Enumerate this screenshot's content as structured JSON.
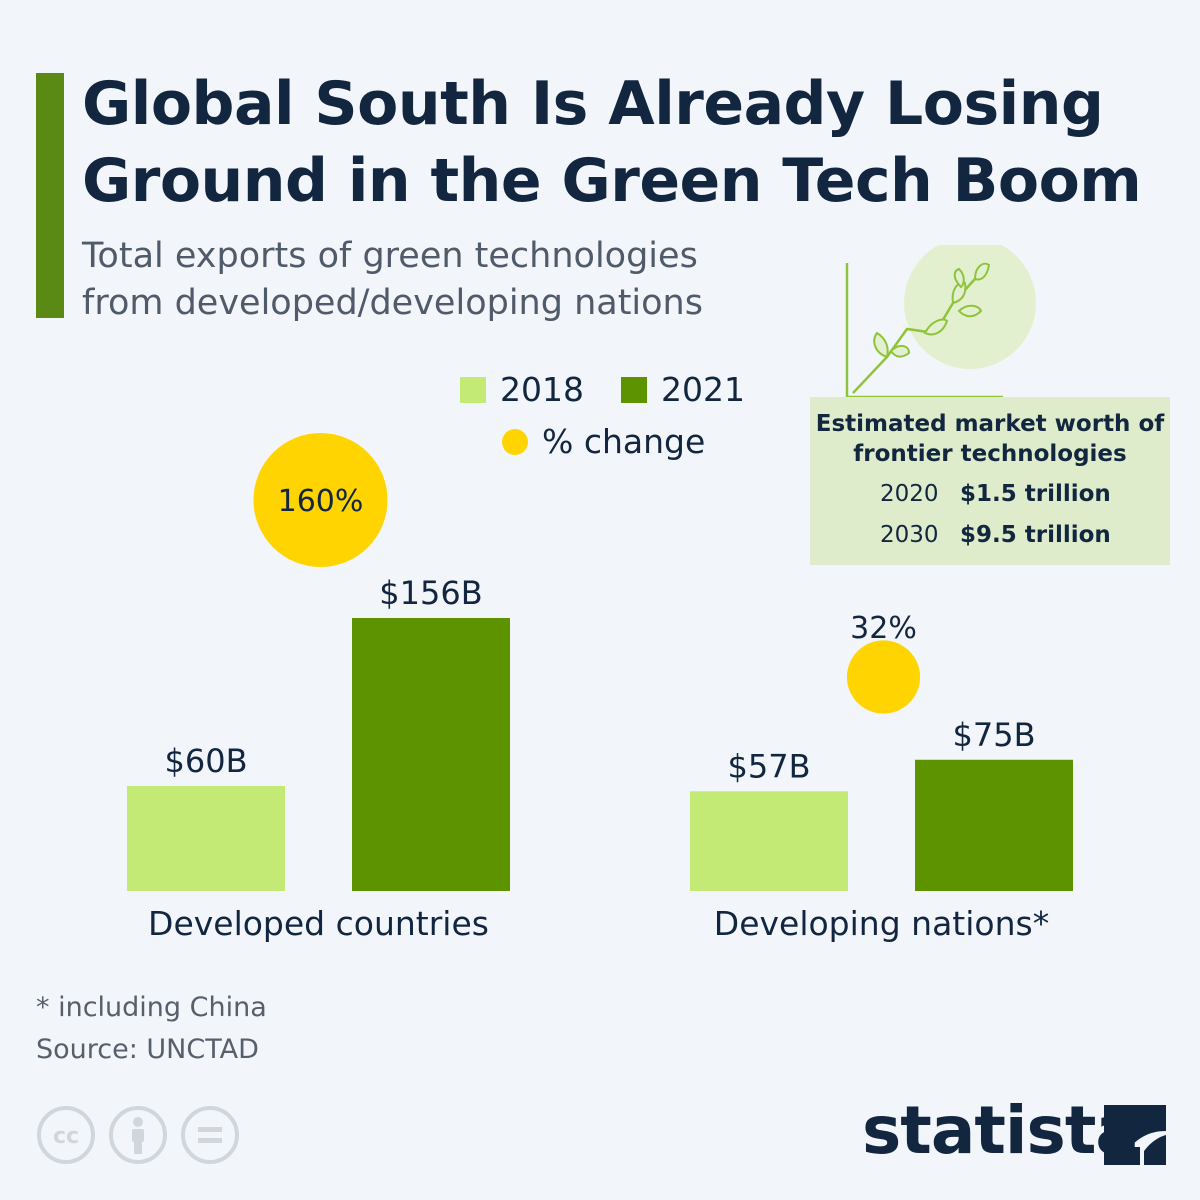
{
  "title": "Global South Is Already Losing Ground in the Green Tech Boom",
  "subtitle": "Total exports of green technologies from developed/developing nations",
  "legend": {
    "year_a": "2018",
    "year_b": "2021",
    "change": "% change"
  },
  "colors": {
    "light_green": "#c2ea74",
    "dark_green": "#5e9300",
    "yellow": "#ffd400",
    "navy": "#12263f",
    "accent": "#5a8a14",
    "info_bg": "#deeccb"
  },
  "chart_data": {
    "type": "bar",
    "title": "Total exports of green technologies from developed/developing nations",
    "categories": [
      "Developed countries",
      "Developing nations"
    ],
    "category_suffix": [
      "",
      "*"
    ],
    "series": [
      {
        "name": "2018",
        "values": [
          60,
          57
        ],
        "labels": [
          "$60B",
          "$57B"
        ]
      },
      {
        "name": "2021",
        "values": [
          156,
          75
        ],
        "labels": [
          "$156B",
          "$75B"
        ]
      }
    ],
    "pct_change": {
      "values": [
        160,
        32
      ],
      "labels": [
        "160%",
        "32%"
      ]
    },
    "unit": "billion USD",
    "xlabel": "",
    "ylabel": "",
    "ylim": [
      0,
      160
    ],
    "grid": false,
    "legend_position": "top-center"
  },
  "info_box": {
    "title": "Estimated market worth of frontier technologies",
    "rows": [
      {
        "year": "2020",
        "value": "$1.5 trillion"
      },
      {
        "year": "2030",
        "value": "$9.5 trillion"
      }
    ],
    "icon": "growing-plant-icon"
  },
  "footnotes": {
    "note": "* including China",
    "source": "Source: UNCTAD"
  },
  "license_icons": [
    "cc-icon",
    "attribution-icon",
    "no-derivatives-icon"
  ],
  "brand": {
    "name": "statista",
    "icon": "statista-logo-icon"
  }
}
